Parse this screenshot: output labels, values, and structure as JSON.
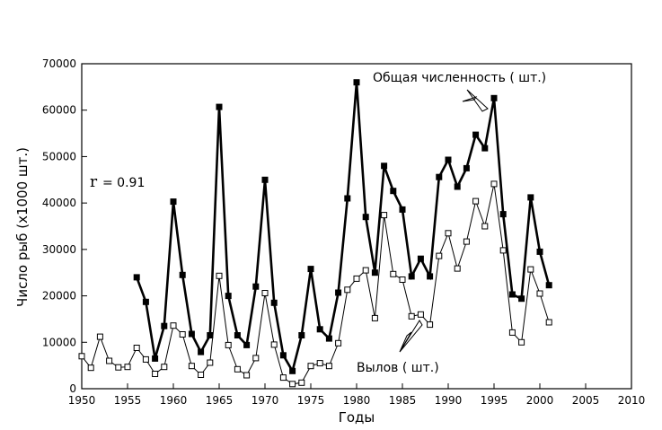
{
  "chart_data": {
    "type": "line",
    "xlabel": "Годы",
    "ylabel": "Число рыб (х1000 шт.)",
    "xlim": [
      1950,
      2010
    ],
    "ylim": [
      0,
      70000
    ],
    "x_ticks": [
      1950,
      1955,
      1960,
      1965,
      1970,
      1975,
      1980,
      1985,
      1990,
      1995,
      2000,
      2005,
      2010
    ],
    "y_ticks": [
      0,
      10000,
      20000,
      30000,
      40000,
      50000,
      60000,
      70000
    ],
    "grid": false,
    "annotations": {
      "r_label": "r",
      "r_value": "= 0.91",
      "series_total_label": "Общая численность ( шт.)",
      "series_catch_label": "Вылов ( шт.)"
    },
    "series": [
      {
        "name": "Общая численность ( шт.)",
        "marker": "filled-square",
        "line": "thick",
        "x": [
          1956,
          1957,
          1958,
          1959,
          1960,
          1961,
          1962,
          1963,
          1964,
          1965,
          1966,
          1967,
          1968,
          1969,
          1970,
          1971,
          1972,
          1973,
          1974,
          1975,
          1976,
          1977,
          1978,
          1979,
          1980,
          1981,
          1982,
          1983,
          1984,
          1985,
          1986,
          1987,
          1988,
          1989,
          1990,
          1991,
          1992,
          1993,
          1994,
          1995,
          1996,
          1997,
          1998,
          1999,
          2000,
          2001
        ],
        "values": [
          24000,
          18700,
          6500,
          13500,
          40300,
          24500,
          11800,
          7900,
          11500,
          60700,
          20000,
          11500,
          9400,
          22000,
          45000,
          18500,
          7200,
          3800,
          11500,
          25800,
          12800,
          10800,
          20700,
          41000,
          66000,
          37000,
          25000,
          48000,
          42600,
          38600,
          24200,
          28000,
          24200,
          45600,
          49300,
          43500,
          47500,
          54700,
          51800,
          62600,
          37600,
          20300,
          19400,
          41200,
          29500,
          22300
        ]
      },
      {
        "name": "Вылов ( шт.)",
        "marker": "open-square",
        "line": "thin",
        "x": [
          1950,
          1951,
          1952,
          1953,
          1954,
          1955,
          1956,
          1957,
          1958,
          1959,
          1960,
          1961,
          1962,
          1963,
          1964,
          1965,
          1966,
          1967,
          1968,
          1969,
          1970,
          1971,
          1972,
          1973,
          1974,
          1975,
          1976,
          1977,
          1978,
          1979,
          1980,
          1981,
          1982,
          1983,
          1984,
          1985,
          1986,
          1987,
          1988,
          1989,
          1990,
          1991,
          1992,
          1993,
          1994,
          1995,
          1996,
          1997,
          1998,
          1999,
          2000,
          2001
        ],
        "values": [
          7000,
          4500,
          11200,
          6000,
          4600,
          4700,
          8800,
          6300,
          3200,
          4700,
          13600,
          11700,
          4900,
          3000,
          5600,
          24300,
          9400,
          4200,
          2900,
          6600,
          20600,
          9500,
          2400,
          1000,
          1300,
          4900,
          5500,
          4900,
          9800,
          21300,
          23700,
          25500,
          15200,
          37400,
          24700,
          23500,
          15600,
          16000,
          13800,
          28600,
          33500,
          25900,
          31700,
          40400,
          35000,
          44100,
          29800,
          12100,
          10000,
          25700,
          20500,
          14300
        ]
      }
    ]
  }
}
